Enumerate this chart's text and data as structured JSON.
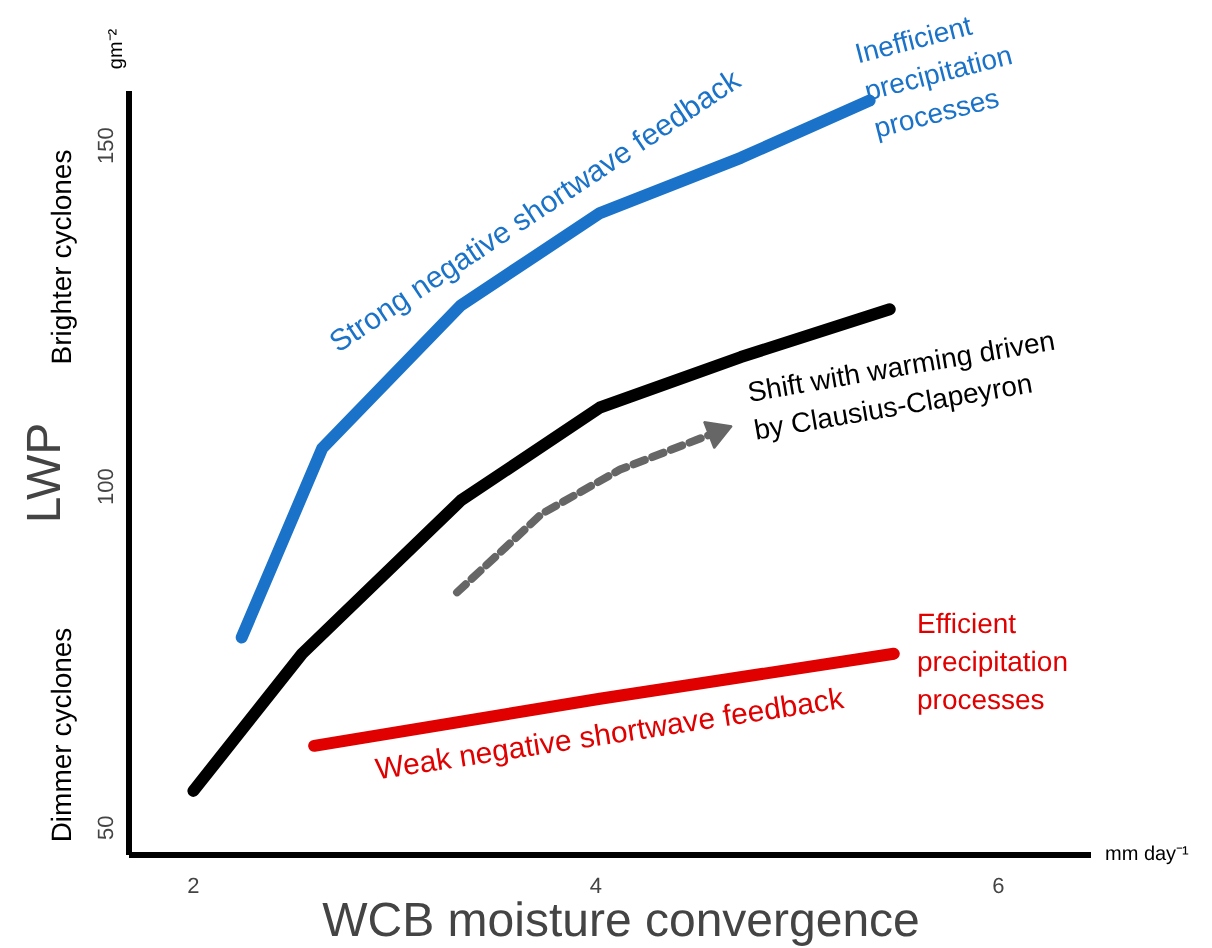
{
  "chart_data": {
    "type": "line",
    "xlabel": "WCB moisture convergence",
    "ylabel": "LWP",
    "xlim": [
      1.68,
      6.46
    ],
    "ylim": [
      46,
      158
    ],
    "xticks": [
      2,
      4,
      6
    ],
    "yticks": [
      50,
      100,
      150
    ],
    "grid": false,
    "series": [
      {
        "name": "Strong negative shortwave feedback",
        "color": "#1a73c8",
        "x": [
          2.24,
          2.64,
          3.33,
          4.02,
          4.72,
          5.36
        ],
        "values": [
          77.9,
          105.6,
          126.6,
          140.1,
          148.2,
          156.6
        ]
      },
      {
        "color": "#000000",
        "x": [
          2.0,
          2.54,
          3.33,
          4.02,
          4.72,
          5.46
        ],
        "values": [
          55.4,
          75.5,
          98,
          111.6,
          119,
          126
        ]
      },
      {
        "name": "Weak negative shortwave feedback",
        "color": "#e00000",
        "x": [
          2.6,
          4.02,
          5.48
        ],
        "values": [
          62,
          68.9,
          75.5
        ]
      },
      {
        "color": "#666666",
        "line_style": "dashed",
        "x": [
          3.31,
          3.73,
          4.12,
          4.6
        ],
        "values": [
          84.5,
          96,
          102.5,
          108
        ]
      }
    ],
    "annotations": [
      "Inefficient\nprecipitation\nprocesses",
      "Shift with warming driven\nby Clausius-Clapeyron",
      "Efficient\nprecipitation\nprocesses",
      "Dimmer cyclones",
      "Brighter cyclones",
      "gm⁻²",
      "mm day⁻¹"
    ]
  }
}
